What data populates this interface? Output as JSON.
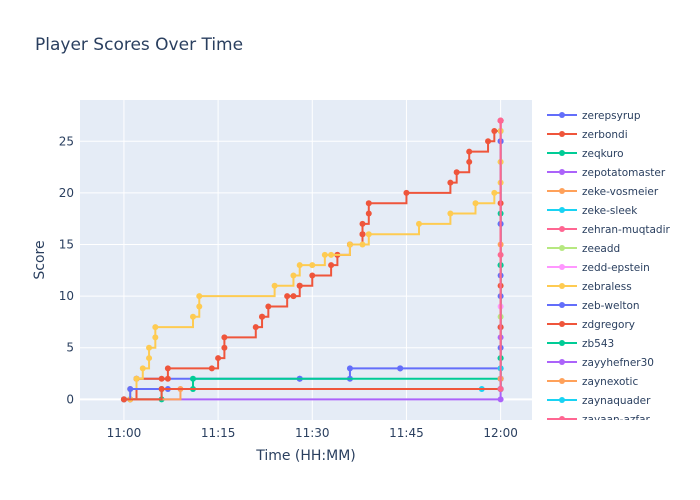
{
  "chart_data": {
    "type": "line",
    "line_shape": "step",
    "title": "Player Scores Over Time",
    "xlabel": "Time (HH:MM)",
    "ylabel": "Score",
    "x_ticks": [
      "11:00",
      "11:15",
      "11:30",
      "11:45",
      "12:00"
    ],
    "y_ticks": [
      0,
      5,
      10,
      15,
      20,
      25
    ],
    "xlim": [
      "10:53",
      "12:05"
    ],
    "ylim": [
      -2,
      29
    ],
    "grid": true,
    "legend_position": "right",
    "series": [
      {
        "name": "zerepsyrup",
        "color": "#636efa",
        "x": [
          "11:00",
          "11:01",
          "11:02",
          "11:28",
          "11:28",
          "11:36",
          "11:36",
          "11:44",
          "11:44",
          "12:00",
          "12:00",
          "12:00"
        ],
        "y": [
          0,
          0,
          2,
          2,
          2,
          2,
          3,
          3,
          3,
          3,
          25,
          27
        ]
      },
      {
        "name": "zerbondi",
        "color": "#ef553b",
        "x": [
          "11:00",
          "11:01",
          "11:02",
          "11:06",
          "11:07",
          "11:07",
          "11:14",
          "11:15",
          "11:16",
          "11:16",
          "11:21",
          "11:22",
          "11:22",
          "11:23",
          "11:26",
          "11:27",
          "11:28",
          "11:28",
          "11:30",
          "11:33",
          "11:34",
          "11:34",
          "11:36",
          "11:36",
          "11:38",
          "11:38",
          "11:38",
          "11:39",
          "11:39",
          "11:45",
          "11:52",
          "11:53",
          "11:55",
          "11:55",
          "11:58",
          "11:59",
          "12:00"
        ],
        "y": [
          0,
          0,
          2,
          2,
          2,
          3,
          3,
          4,
          5,
          6,
          7,
          8,
          8,
          9,
          10,
          10,
          11,
          11,
          12,
          13,
          14,
          14,
          15,
          15,
          16,
          16,
          17,
          18,
          19,
          20,
          21,
          22,
          23,
          24,
          25,
          26,
          27
        ]
      },
      {
        "name": "zeqkuro",
        "color": "#00cc96",
        "x": [
          "11:00",
          "11:06",
          "11:06",
          "11:11",
          "11:11",
          "12:00",
          "12:00",
          "12:00",
          "12:00",
          "12:00"
        ],
        "y": [
          0,
          0,
          1,
          1,
          2,
          2,
          4,
          13,
          18,
          26
        ]
      },
      {
        "name": "zepotatomaster",
        "color": "#ab63fa",
        "x": [
          "11:00",
          "12:00",
          "12:00",
          "12:00"
        ],
        "y": [
          0,
          0,
          2,
          6
        ]
      },
      {
        "name": "zeke-vosmeier",
        "color": "#ffa15a",
        "x": [
          "11:00",
          "11:09",
          "12:00",
          "12:00"
        ],
        "y": [
          0,
          1,
          1,
          3
        ]
      },
      {
        "name": "zeke-sleek",
        "color": "#19d3f3",
        "x": [
          "11:57",
          "12:00",
          "12:00"
        ],
        "y": [
          1,
          1,
          17
        ]
      },
      {
        "name": "zehran-muqtadir",
        "color": "#ff6692",
        "x": [
          "12:00",
          "12:00",
          "12:00"
        ],
        "y": [
          1,
          14,
          27
        ]
      },
      {
        "name": "zeeadd",
        "color": "#b6e880",
        "x": [
          "12:00",
          "12:00",
          "12:00"
        ],
        "y": [
          1,
          8,
          23
        ]
      },
      {
        "name": "zedd-epstein",
        "color": "#ff97ff",
        "x": [
          "12:00",
          "12:00"
        ],
        "y": [
          1,
          9
        ]
      },
      {
        "name": "zebraless",
        "color": "#fecb52",
        "x": [
          "11:00",
          "11:01",
          "11:01",
          "11:02",
          "11:03",
          "11:04",
          "11:04",
          "11:05",
          "11:05",
          "11:11",
          "11:12",
          "11:12",
          "11:24",
          "11:27",
          "11:28",
          "11:30",
          "11:32",
          "11:33",
          "11:36",
          "11:38",
          "11:39",
          "11:47",
          "11:52",
          "11:56",
          "11:59",
          "12:00",
          "12:00",
          "12:00"
        ],
        "y": [
          0,
          0,
          1,
          2,
          3,
          4,
          5,
          6,
          7,
          8,
          9,
          10,
          11,
          12,
          13,
          13,
          14,
          14,
          15,
          15,
          16,
          17,
          18,
          19,
          20,
          21,
          23,
          26
        ]
      },
      {
        "name": "zeb-welton",
        "color": "#636efa",
        "x": [
          "11:00",
          "11:01",
          "11:07",
          "12:00",
          "12:00",
          "12:00",
          "12:00",
          "12:00",
          "12:00",
          "12:00"
        ],
        "y": [
          0,
          1,
          1,
          1,
          5,
          7,
          10,
          12,
          17,
          25
        ]
      },
      {
        "name": "zdgregory",
        "color": "#ef553b",
        "x": [
          "11:00",
          "11:06",
          "12:00",
          "12:00",
          "12:00",
          "12:00"
        ],
        "y": [
          0,
          1,
          1,
          7,
          11,
          19
        ]
      },
      {
        "name": "zb543",
        "color": "#00cc96",
        "x": [
          "12:00",
          "12:00",
          "12:00"
        ],
        "y": [
          1,
          4,
          13
        ]
      },
      {
        "name": "zayyhefner30",
        "color": "#ab63fa",
        "x": [
          "12:00",
          "12:00"
        ],
        "y": [
          1,
          2
        ]
      },
      {
        "name": "zaynexotic",
        "color": "#ffa15a",
        "x": [
          "12:00",
          "12:00"
        ],
        "y": [
          2,
          15
        ]
      },
      {
        "name": "zaynaquader",
        "color": "#19d3f3",
        "x": [
          "12:00",
          "12:00"
        ],
        "y": [
          1,
          3
        ]
      },
      {
        "name": "zayaan-azfar",
        "color": "#ff6692",
        "x": [
          "12:00",
          "12:00"
        ],
        "y": [
          1,
          27
        ]
      }
    ]
  }
}
